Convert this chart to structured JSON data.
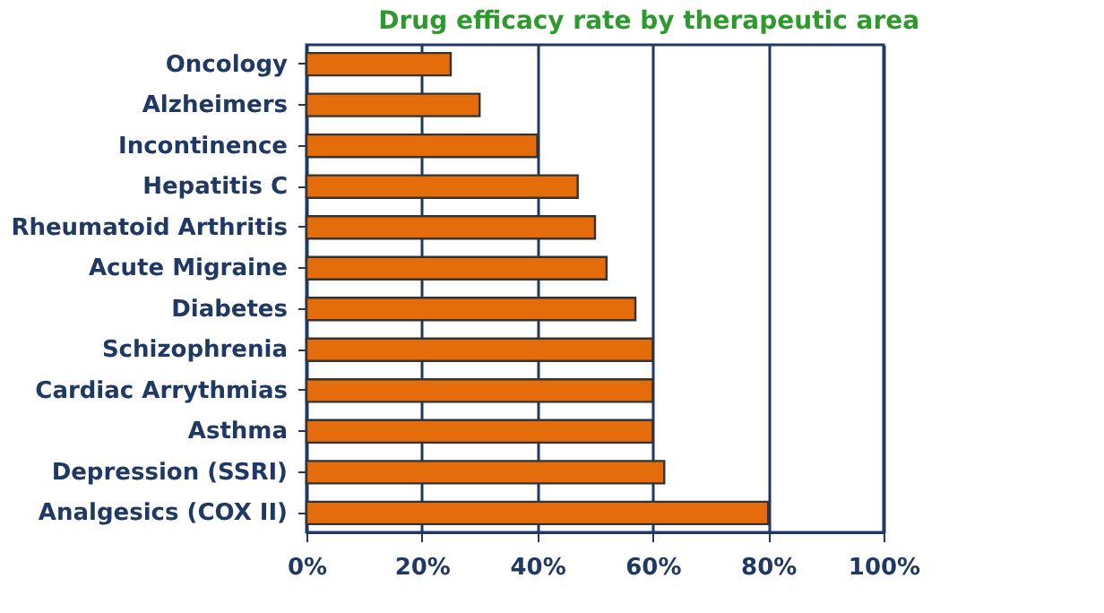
{
  "chart_data": {
    "type": "bar",
    "orientation": "horizontal",
    "title": "Drug efficacy rate by therapeutic area",
    "categories": [
      "Oncology",
      "Alzheimers",
      "Incontinence",
      "Hepatitis C",
      "Rheumatoid Arthritis",
      "Acute Migraine",
      "Diabetes",
      "Schizophrenia",
      "Cardiac Arrythmias",
      "Asthma",
      "Depression (SSRI)",
      "Analgesics (COX II)"
    ],
    "values": [
      25,
      30,
      40,
      47,
      50,
      52,
      57,
      60,
      60,
      60,
      62,
      80
    ],
    "color": "#e46c0a",
    "xlim": [
      0,
      100
    ],
    "xticks": [
      {
        "value": 0,
        "label": "0%"
      },
      {
        "value": 20,
        "label": "20%"
      },
      {
        "value": 40,
        "label": "40%"
      },
      {
        "value": 60,
        "label": "60%"
      },
      {
        "value": 80,
        "label": "80%"
      },
      {
        "value": 100,
        "label": "100%"
      }
    ],
    "grid": "x"
  }
}
